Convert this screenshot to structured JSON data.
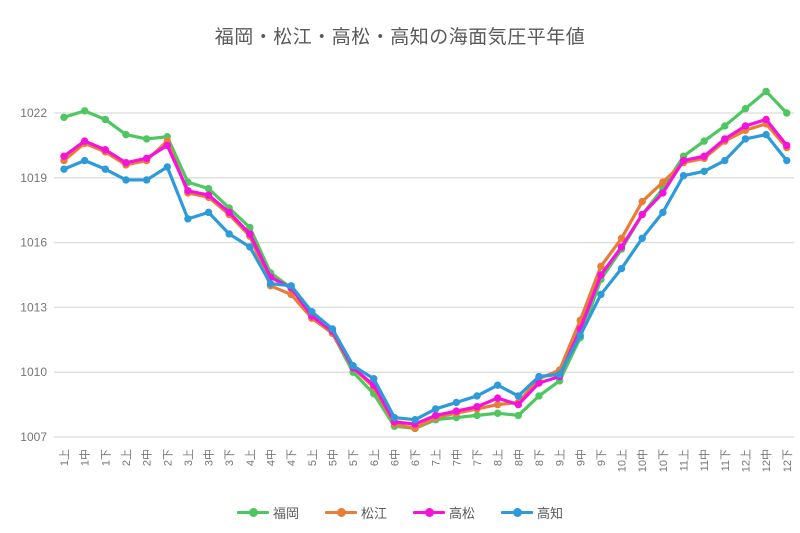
{
  "chart_data": {
    "type": "line",
    "title": "福岡・松江・高松・高知の海面気圧平年値",
    "categories": [
      "1上",
      "1中",
      "1下",
      "2上",
      "2中",
      "2下",
      "3上",
      "3中",
      "3下",
      "4上",
      "4中",
      "4下",
      "5上",
      "5中",
      "5下",
      "6上",
      "6中",
      "6下",
      "7上",
      "7中",
      "7下",
      "8上",
      "8中",
      "8下",
      "9上",
      "9中",
      "9下",
      "10上",
      "10中",
      "10下",
      "11上",
      "11中",
      "11下",
      "12上",
      "12中",
      "12下"
    ],
    "series": [
      {
        "name": "福岡",
        "color": "#4EC760",
        "values": [
          1021.8,
          1022.1,
          1021.7,
          1021.0,
          1020.8,
          1020.9,
          1018.8,
          1018.5,
          1017.6,
          1016.7,
          1014.6,
          1013.9,
          1012.7,
          1011.8,
          1010.0,
          1009.0,
          1007.5,
          1007.4,
          1007.8,
          1007.9,
          1008.0,
          1008.1,
          1008.0,
          1008.9,
          1009.6,
          1011.6,
          1014.3,
          1015.7,
          1017.3,
          1018.5,
          1020.0,
          1020.7,
          1021.4,
          1022.2,
          1023.0,
          1022.0
        ]
      },
      {
        "name": "松江",
        "color": "#E97D35",
        "values": [
          1019.8,
          1020.6,
          1020.2,
          1019.6,
          1019.8,
          1020.7,
          1018.3,
          1018.1,
          1017.3,
          1016.3,
          1014.0,
          1013.6,
          1012.5,
          1011.8,
          1010.2,
          1009.3,
          1007.6,
          1007.4,
          1007.9,
          1008.1,
          1008.3,
          1008.5,
          1008.6,
          1009.7,
          1010.1,
          1012.4,
          1014.9,
          1016.2,
          1017.9,
          1018.8,
          1019.7,
          1019.9,
          1020.7,
          1021.2,
          1021.5,
          1020.4
        ]
      },
      {
        "name": "高松",
        "color": "#F711DC",
        "values": [
          1020.0,
          1020.7,
          1020.3,
          1019.7,
          1019.9,
          1020.5,
          1018.4,
          1018.2,
          1017.4,
          1016.4,
          1014.4,
          1013.9,
          1012.6,
          1011.9,
          1010.2,
          1009.4,
          1007.7,
          1007.6,
          1008.0,
          1008.2,
          1008.4,
          1008.8,
          1008.5,
          1009.5,
          1009.8,
          1012.0,
          1014.5,
          1015.8,
          1017.3,
          1018.3,
          1019.8,
          1020.0,
          1020.8,
          1021.4,
          1021.7,
          1020.5
        ]
      },
      {
        "name": "高知",
        "color": "#2D9BD9",
        "values": [
          1019.4,
          1019.8,
          1019.4,
          1018.9,
          1018.9,
          1019.5,
          1017.1,
          1017.4,
          1016.4,
          1015.8,
          1014.1,
          1014.0,
          1012.8,
          1012.0,
          1010.3,
          1009.7,
          1007.9,
          1007.8,
          1008.3,
          1008.6,
          1008.9,
          1009.4,
          1008.9,
          1009.8,
          1009.9,
          1011.7,
          1013.6,
          1014.8,
          1016.2,
          1017.4,
          1019.1,
          1019.3,
          1019.8,
          1020.8,
          1021.0,
          1019.8
        ]
      }
    ],
    "xlabel": "",
    "ylabel": "",
    "y_ticks": [
      1007,
      1010,
      1013,
      1016,
      1019,
      1022
    ],
    "ylim": [
      1007,
      1023.8
    ],
    "grid": true,
    "legend_position": "bottom",
    "style": {
      "grid_color": "#DCDCDC",
      "axis_text_color": "#767676",
      "title_color": "#595959",
      "legend_text_color": "#595959",
      "background": "#FFFFFF"
    }
  }
}
